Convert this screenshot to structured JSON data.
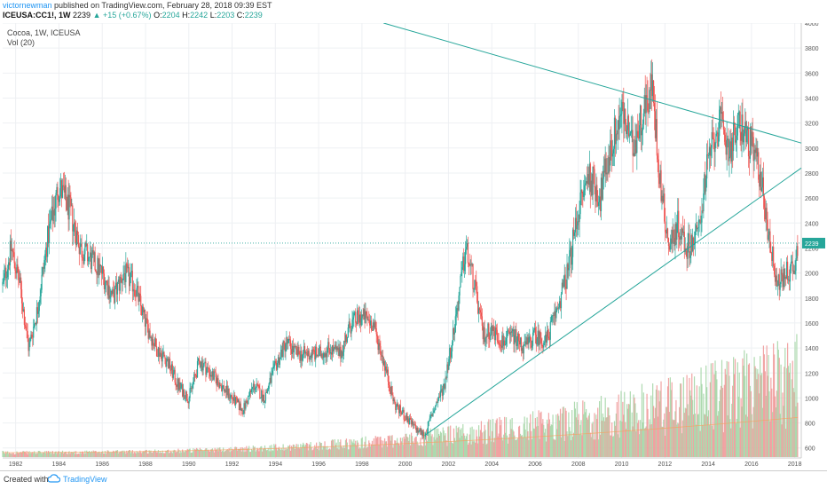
{
  "header": {
    "author": "victornewman",
    "published": "published on TradingView.com, February 28, 2018 09:39 EST",
    "symbol": "ICEUSA:CC1!, 1W",
    "last": "2239",
    "change": "+15 (+0.67%)",
    "o_label": "O:",
    "o_val": "2204",
    "h_label": "H:",
    "h_val": "2242",
    "l_label": "L:",
    "l_val": "2203",
    "c_label": "C:",
    "c_val": "2239"
  },
  "legend": {
    "line1": "Cocoa, 1W, ICEUSA",
    "line2": "Vol (20)"
  },
  "price_label": "2239",
  "footer": {
    "created": "Created with",
    "brand": "TradingView"
  },
  "colors": {
    "up": "#26a69a",
    "down": "#ef5350",
    "trend": "#26a69a",
    "volUp": "#a5d6a7",
    "volDown": "#ef9a9a"
  },
  "chart_data": {
    "type": "candlestick",
    "title": "Cocoa, 1W, ICEUSA",
    "x_ticks": [
      "1982",
      "1984",
      "1986",
      "1988",
      "1990",
      "1992",
      "1994",
      "1996",
      "1998",
      "2000",
      "2002",
      "2004",
      "2006",
      "2008",
      "2010",
      "2012",
      "2014",
      "2016",
      "2018"
    ],
    "y_ticks": [
      4000,
      3800,
      3600,
      3400,
      3200,
      3000,
      2800,
      2600,
      2400,
      2200,
      2000,
      1800,
      1600,
      1400,
      1200,
      1000,
      800,
      600
    ],
    "ylim": [
      520,
      4000
    ],
    "xlim": [
      1981.4,
      2018.3
    ],
    "last_price": 2239,
    "price_path": [
      [
        1981.4,
        1900
      ],
      [
        1981.8,
        2200
      ],
      [
        1982.2,
        1900
      ],
      [
        1982.6,
        1400
      ],
      [
        1983.0,
        1700
      ],
      [
        1983.5,
        2300
      ],
      [
        1984.0,
        2700
      ],
      [
        1984.5,
        2500
      ],
      [
        1985.0,
        2200
      ],
      [
        1985.5,
        2100
      ],
      [
        1986.0,
        2000
      ],
      [
        1986.5,
        1800
      ],
      [
        1987.0,
        2000
      ],
      [
        1987.5,
        1900
      ],
      [
        1988.0,
        1600
      ],
      [
        1988.5,
        1400
      ],
      [
        1989.0,
        1300
      ],
      [
        1989.5,
        1100
      ],
      [
        1990.0,
        1000
      ],
      [
        1990.5,
        1300
      ],
      [
        1991.0,
        1200
      ],
      [
        1991.5,
        1100
      ],
      [
        1992.0,
        1000
      ],
      [
        1992.5,
        900
      ],
      [
        1993.0,
        1100
      ],
      [
        1993.5,
        1000
      ],
      [
        1994.0,
        1250
      ],
      [
        1994.5,
        1450
      ],
      [
        1995.0,
        1350
      ],
      [
        1995.5,
        1350
      ],
      [
        1996.0,
        1350
      ],
      [
        1996.5,
        1400
      ],
      [
        1997.0,
        1350
      ],
      [
        1997.5,
        1600
      ],
      [
        1998.0,
        1650
      ],
      [
        1998.5,
        1600
      ],
      [
        1999.0,
        1300
      ],
      [
        1999.5,
        950
      ],
      [
        2000.0,
        850
      ],
      [
        2000.5,
        750
      ],
      [
        2000.9,
        700
      ],
      [
        2001.3,
        900
      ],
      [
        2001.8,
        1100
      ],
      [
        2002.3,
        1600
      ],
      [
        2002.8,
        2200
      ],
      [
        2003.2,
        1900
      ],
      [
        2003.6,
        1500
      ],
      [
        2004.0,
        1550
      ],
      [
        2004.5,
        1450
      ],
      [
        2005.0,
        1500
      ],
      [
        2005.5,
        1400
      ],
      [
        2006.0,
        1500
      ],
      [
        2006.5,
        1450
      ],
      [
        2007.0,
        1700
      ],
      [
        2007.5,
        2000
      ],
      [
        2008.0,
        2500
      ],
      [
        2008.5,
        2800
      ],
      [
        2009.0,
        2600
      ],
      [
        2009.5,
        3000
      ],
      [
        2010.0,
        3300
      ],
      [
        2010.5,
        3000
      ],
      [
        2011.0,
        3300
      ],
      [
        2011.4,
        3500
      ],
      [
        2011.8,
        2700
      ],
      [
        2012.2,
        2200
      ],
      [
        2012.6,
        2400
      ],
      [
        2013.0,
        2200
      ],
      [
        2013.5,
        2300
      ],
      [
        2014.0,
        2900
      ],
      [
        2014.5,
        3200
      ],
      [
        2015.0,
        3000
      ],
      [
        2015.5,
        3200
      ],
      [
        2016.0,
        3000
      ],
      [
        2016.4,
        2800
      ],
      [
        2016.8,
        2300
      ],
      [
        2017.2,
        1900
      ],
      [
        2017.6,
        2000
      ],
      [
        2018.0,
        2050
      ],
      [
        2018.15,
        2239
      ]
    ],
    "trendlines": [
      {
        "from": [
          1999.0,
          4000
        ],
        "to": [
          2018.3,
          3040
        ]
      },
      {
        "from": [
          2000.9,
          700
        ],
        "to": [
          2018.3,
          2840
        ]
      }
    ]
  }
}
